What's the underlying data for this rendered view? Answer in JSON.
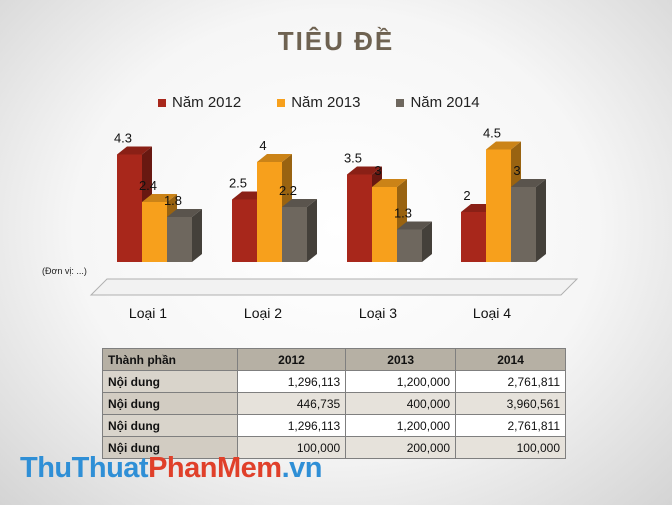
{
  "slide": {
    "title": "TIÊU ĐỀ",
    "unit_note": "(Đơn vị: ...)"
  },
  "chart_data": {
    "type": "bar",
    "title": "TIÊU ĐỀ",
    "categories": [
      "Loại 1",
      "Loại 2",
      "Loại 3",
      "Loại 4"
    ],
    "series": [
      {
        "name": "Năm 2012",
        "values": [
          4.3,
          2.5,
          3.5,
          2
        ],
        "color": "#a8271b"
      },
      {
        "name": "Năm 2013",
        "values": [
          2.4,
          4,
          3,
          4.5
        ],
        "color": "#f7a01c"
      },
      {
        "name": "Năm 2014",
        "values": [
          1.8,
          2.2,
          1.3,
          3
        ],
        "color": "#6e675e"
      }
    ],
    "ylim": [
      0,
      5
    ],
    "grid": false,
    "legend_position": "top",
    "three_d": true
  },
  "table": {
    "headers": [
      "Thành phần",
      "2012",
      "2013",
      "2014"
    ],
    "rows": [
      [
        "Nội dung",
        "1,296,113",
        "1,200,000",
        "2,761,811"
      ],
      [
        "Nội dung",
        "446,735",
        "400,000",
        "3,960,561"
      ],
      [
        "Nội dung",
        "1,296,113",
        "1,200,000",
        "2,761,811"
      ],
      [
        "Nội dung",
        "100,000",
        "200,000",
        "100,000"
      ]
    ]
  },
  "watermark": {
    "part1": "ThuThuat",
    "part2": "PhanMem",
    "part3": ".vn"
  }
}
